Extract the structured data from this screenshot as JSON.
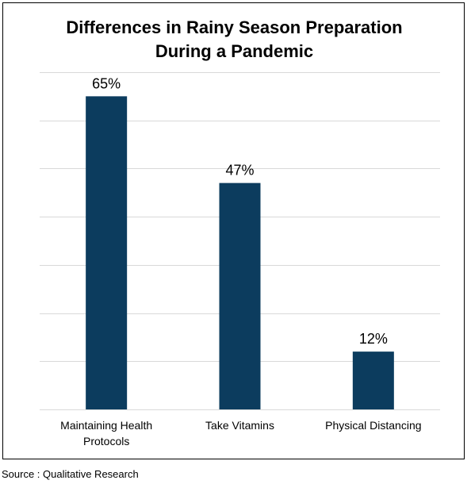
{
  "chart_data": {
    "type": "bar",
    "title_lines": [
      "Differences in Rainy Season Preparation",
      "During a Pandemic"
    ],
    "categories": [
      [
        "Maintaining Health",
        "Protocols"
      ],
      [
        "Take Vitamins"
      ],
      [
        "Physical Distancing"
      ]
    ],
    "values": [
      65,
      47,
      12
    ],
    "value_labels": [
      "65%",
      "47%",
      "12%"
    ],
    "xlabel": "",
    "ylabel": "",
    "ylim": [
      0,
      70
    ],
    "gridlines": true,
    "y_tick_labels_visible": false,
    "legend": "none",
    "bar_color": "#0c3c5e",
    "grid_color": "#d9d9d9"
  },
  "footer": {
    "source": "Source : Qualitative Research"
  }
}
